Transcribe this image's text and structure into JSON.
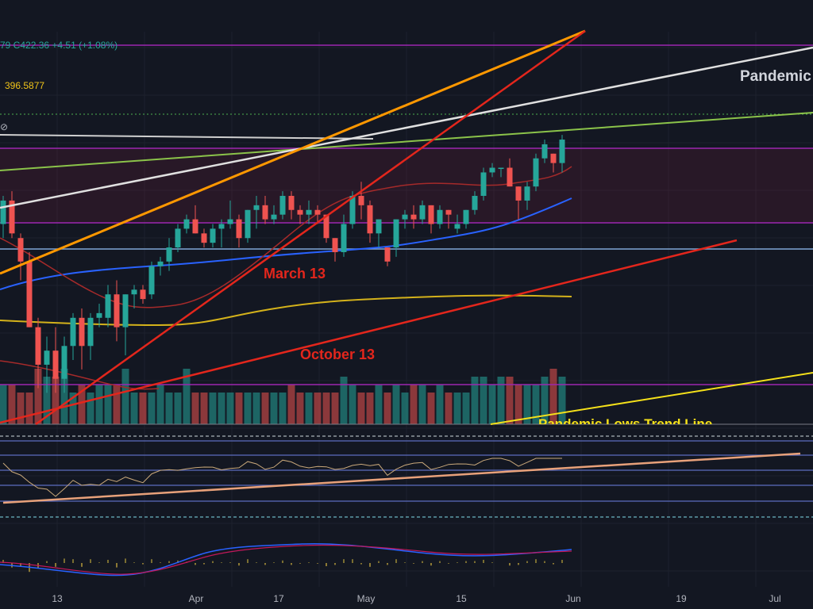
{
  "legend": {
    "ohlc_text": "79  C422.36  +4.51 (+1.08%)",
    "ma_value": "396.5877",
    "eye_glyph": "⊘"
  },
  "annotations": {
    "pandemic_top": "Pandemic",
    "march": "March 13",
    "october": "October 13",
    "pandemic_trend": "Pandemic Lows Trend Line"
  },
  "x_ticks": [
    "13",
    "Apr",
    "17",
    "May",
    "15",
    "Jun",
    "19",
    "Jul"
  ],
  "colors": {
    "background": "#131722",
    "up": "#26a69a",
    "down": "#ef5350",
    "purple_line": "#9c27b0",
    "orange_line": "#ff9800",
    "red_line": "#e3261c",
    "white_line": "#e0e0e0",
    "green_trend": "#8bc34a",
    "yellow_line": "#f5e11a",
    "blue_ma": "#2962ff",
    "yellow_ma": "#d4b21b",
    "red_ma": "#a52a2a",
    "steel_line": "#7fa6d6",
    "salmon_trend": "#e8a17a"
  },
  "chart_data": {
    "type": "candlestick",
    "y_range": [
      345,
      427
    ],
    "last_close": 422.36,
    "change": 4.51,
    "change_pct": 1.08,
    "moving_average_value": 396.5877,
    "candles": [
      [
        386,
        392,
        383,
        391
      ],
      [
        391,
        393,
        383,
        384
      ],
      [
        383,
        384,
        374,
        378
      ],
      [
        378,
        380,
        364,
        364
      ],
      [
        364,
        366,
        351,
        356
      ],
      [
        356,
        362,
        350,
        359
      ],
      [
        359,
        364,
        350,
        353
      ],
      [
        353,
        362,
        350,
        360
      ],
      [
        360,
        367,
        357,
        366
      ],
      [
        366,
        368,
        355,
        360
      ],
      [
        360,
        367,
        357,
        366
      ],
      [
        366,
        369,
        364,
        367
      ],
      [
        366,
        373,
        364,
        371
      ],
      [
        371,
        374,
        361,
        364
      ],
      [
        364,
        371,
        358,
        371
      ],
      [
        371,
        373,
        368,
        372
      ],
      [
        372,
        373,
        369,
        370
      ],
      [
        371,
        378,
        370,
        377
      ],
      [
        377,
        379,
        375,
        378
      ],
      [
        378,
        383,
        376,
        381
      ],
      [
        381,
        386,
        380,
        385
      ],
      [
        385,
        388,
        384,
        387
      ],
      [
        387,
        390,
        384,
        384
      ],
      [
        384,
        385,
        381,
        382
      ],
      [
        382,
        386,
        381,
        385
      ],
      [
        385,
        387,
        381,
        386
      ],
      [
        386,
        391,
        385,
        387
      ],
      [
        387,
        388,
        381,
        383
      ],
      [
        383,
        389,
        382,
        389
      ],
      [
        389,
        392,
        385,
        390
      ],
      [
        390,
        392,
        386,
        387
      ],
      [
        387,
        390,
        386,
        388
      ],
      [
        388,
        393,
        387,
        392
      ],
      [
        392,
        393,
        387,
        389
      ],
      [
        389,
        390,
        386,
        388
      ],
      [
        388,
        391,
        386,
        389
      ],
      [
        389,
        390,
        386,
        388
      ],
      [
        388,
        388,
        382,
        383
      ],
      [
        383,
        383,
        378,
        380
      ],
      [
        380,
        388,
        379,
        386
      ],
      [
        386,
        393,
        385,
        392
      ],
      [
        392,
        395,
        387,
        390
      ],
      [
        390,
        391,
        382,
        384
      ],
      [
        384,
        387,
        381,
        387
      ],
      [
        381,
        381,
        377,
        378
      ],
      [
        381,
        387,
        379,
        387
      ],
      [
        387,
        389,
        385,
        388
      ],
      [
        388,
        390,
        385,
        387
      ],
      [
        387,
        391,
        386,
        390
      ],
      [
        390,
        390,
        384,
        386
      ],
      [
        386,
        390,
        385,
        389
      ],
      [
        389,
        389,
        385,
        388
      ],
      [
        385,
        388,
        384,
        386
      ],
      [
        386,
        389,
        385,
        389
      ],
      [
        389,
        393,
        388,
        392
      ],
      [
        392,
        398,
        391,
        397
      ],
      [
        397,
        399,
        396,
        398
      ],
      [
        398,
        398,
        396,
        398
      ],
      [
        398,
        400,
        394,
        394
      ],
      [
        394,
        394,
        387,
        391
      ],
      [
        391,
        395,
        389,
        394
      ],
      [
        394,
        401,
        393,
        400
      ],
      [
        400,
        404,
        399,
        403
      ],
      [
        401,
        401,
        397,
        399
      ],
      [
        399,
        405,
        397,
        404
      ]
    ],
    "volume_scale": [
      5,
      5,
      4,
      4,
      7,
      6,
      6,
      7,
      4,
      5,
      4,
      5,
      5,
      5,
      7,
      4,
      4,
      4,
      5,
      4,
      4,
      7,
      4,
      4,
      4,
      4,
      4,
      4,
      4,
      4,
      4,
      4,
      4,
      5,
      4,
      4,
      4,
      4,
      4,
      6,
      5,
      4,
      4,
      5,
      4,
      5,
      4,
      5,
      5,
      4,
      5,
      4,
      4,
      4,
      6,
      6,
      5,
      6,
      6,
      5,
      5,
      5,
      6,
      7,
      6
    ],
    "x_tick_labels": [
      "13",
      "Apr",
      "17",
      "May",
      "15",
      "Jun",
      "19",
      "Jul"
    ]
  }
}
